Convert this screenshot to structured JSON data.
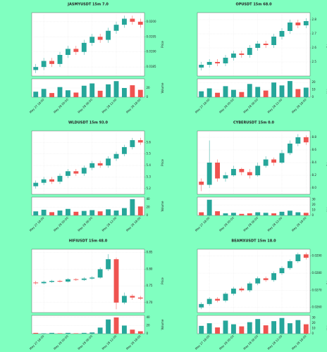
{
  "chart_data": [
    {
      "type": "candlestick",
      "title": "JASMYUSDT 15m 7.0",
      "ylabel": "Price",
      "vlabel": "Volume",
      "up_color": "#26a69a",
      "down_color": "#ef5350",
      "grid": true,
      "open": [
        0.0184,
        0.0185,
        0.0187,
        0.0186,
        0.0189,
        0.0191,
        0.019,
        0.0193,
        0.0195,
        0.0194,
        0.0197,
        0.0199,
        0.0201,
        0.02
      ],
      "high": [
        0.0186,
        0.0188,
        0.0188,
        0.019,
        0.0192,
        0.0192,
        0.0194,
        0.0196,
        0.0196,
        0.0198,
        0.02,
        0.0202,
        0.0202,
        0.0201
      ],
      "low": [
        0.0183,
        0.0184,
        0.0185,
        0.0185,
        0.0188,
        0.0189,
        0.0189,
        0.0192,
        0.0193,
        0.0193,
        0.0196,
        0.0198,
        0.0199,
        0.0198
      ],
      "close": [
        0.0185,
        0.0187,
        0.0186,
        0.0189,
        0.0191,
        0.019,
        0.0193,
        0.0195,
        0.0194,
        0.0197,
        0.0199,
        0.0201,
        0.02,
        0.0199
      ],
      "volume": [
        12,
        18,
        9,
        22,
        15,
        10,
        25,
        30,
        14,
        28,
        35,
        20,
        26,
        16
      ],
      "ylim": [
        0.0182,
        0.0203
      ],
      "yticks": [
        0.0185,
        {
          "value": 0.019,
          "label": "0.0190"
        },
        0.0195,
        {
          "value": 0.02,
          "label": "0.0200"
        }
      ],
      "vlim": [
        0,
        40
      ],
      "vticks": [
        0,
        20
      ],
      "xlim": [
        -0.5,
        13.5
      ],
      "xticks": [
        {
          "value": 1,
          "label": "May 27 18:00"
        },
        {
          "value": 4,
          "label": "May 28 00:00"
        },
        {
          "value": 7,
          "label": "May 28 06:00"
        },
        {
          "value": 10,
          "label": "May 28 12:00"
        },
        {
          "value": 13,
          "label": "May 28 18:00"
        }
      ]
    },
    {
      "type": "candlestick",
      "title": "OPUSDT 15m 68.0",
      "ylabel": "Price",
      "vlabel": "Volume",
      "up_color": "#26a69a",
      "down_color": "#ef5350",
      "grid": true,
      "open": [
        2.46,
        2.48,
        2.5,
        2.49,
        2.53,
        2.56,
        2.55,
        2.6,
        2.63,
        2.62,
        2.68,
        2.72,
        2.78,
        2.76
      ],
      "high": [
        2.5,
        2.52,
        2.52,
        2.55,
        2.58,
        2.58,
        2.62,
        2.65,
        2.65,
        2.7,
        2.74,
        2.8,
        2.8,
        2.81
      ],
      "low": [
        2.44,
        2.46,
        2.47,
        2.47,
        2.51,
        2.53,
        2.53,
        2.58,
        2.6,
        2.6,
        2.66,
        2.7,
        2.74,
        2.74
      ],
      "close": [
        2.48,
        2.5,
        2.49,
        2.53,
        2.56,
        2.55,
        2.6,
        2.63,
        2.62,
        2.68,
        2.72,
        2.78,
        2.76,
        2.79
      ],
      "volume": [
        8,
        12,
        6,
        15,
        10,
        7,
        18,
        14,
        9,
        20,
        16,
        22,
        11,
        13
      ],
      "ylim": [
        2.4,
        2.85
      ],
      "yticks": [
        2.5,
        2.6,
        2.7,
        2.8
      ],
      "vlim": [
        0,
        25
      ],
      "vticks": [
        0,
        10,
        20
      ],
      "xlim": [
        -0.5,
        13.5
      ],
      "xticks": [
        {
          "value": 1,
          "label": "May 27 18:00"
        },
        {
          "value": 4,
          "label": "May 28 00:00"
        },
        {
          "value": 7,
          "label": "May 28 06:00"
        },
        {
          "value": 10,
          "label": "May 28 12:00"
        },
        {
          "value": 13,
          "label": "May 28 18:00"
        }
      ]
    },
    {
      "type": "candlestick",
      "title": "WLDUSDT 15m 93.0",
      "ylabel": "Price",
      "vlabel": "Volume",
      "up_color": "#26a69a",
      "down_color": "#ef5350",
      "grid": true,
      "open": [
        5.22,
        5.25,
        5.28,
        5.26,
        5.31,
        5.35,
        5.33,
        5.38,
        5.42,
        5.4,
        5.46,
        5.5,
        5.56,
        5.62
      ],
      "high": [
        5.27,
        5.3,
        5.3,
        5.33,
        5.37,
        5.37,
        5.4,
        5.44,
        5.44,
        5.48,
        5.52,
        5.58,
        5.64,
        5.64
      ],
      "low": [
        5.2,
        5.23,
        5.24,
        5.24,
        5.29,
        5.31,
        5.31,
        5.36,
        5.38,
        5.38,
        5.44,
        5.48,
        5.54,
        5.58
      ],
      "close": [
        5.25,
        5.28,
        5.26,
        5.31,
        5.35,
        5.33,
        5.38,
        5.42,
        5.4,
        5.46,
        5.5,
        5.56,
        5.62,
        5.6
      ],
      "volume": [
        10,
        14,
        8,
        12,
        16,
        9,
        11,
        13,
        10,
        15,
        12,
        18,
        40,
        22
      ],
      "ylim": [
        5.15,
        5.7
      ],
      "yticks": [
        5.2,
        5.3,
        5.4,
        5.5,
        5.6
      ],
      "vlim": [
        0,
        45
      ],
      "vticks": [
        0,
        20,
        40
      ],
      "xlim": [
        -0.5,
        13.5
      ],
      "xticks": [
        {
          "value": 1,
          "label": "May 27 18:00"
        },
        {
          "value": 4,
          "label": "May 28 00:00"
        },
        {
          "value": 7,
          "label": "May 28 06:00"
        },
        {
          "value": 10,
          "label": "May 28 12:00"
        },
        {
          "value": 13,
          "label": "May 28 18:00"
        }
      ]
    },
    {
      "type": "candlestick",
      "title": "CYBERUSDT 15m 0.0",
      "ylabel": "Price",
      "vlabel": "Volume",
      "up_color": "#26a69a",
      "down_color": "#ef5350",
      "grid": true,
      "open": [
        8.1,
        8.05,
        8.4,
        8.15,
        8.2,
        8.3,
        8.25,
        8.2,
        8.35,
        8.45,
        8.4,
        8.55,
        8.7,
        8.8
      ],
      "high": [
        8.15,
        8.75,
        8.45,
        8.25,
        8.35,
        8.32,
        8.3,
        8.4,
        8.5,
        8.48,
        8.6,
        8.75,
        8.85,
        8.83
      ],
      "low": [
        7.95,
        8.0,
        8.1,
        8.1,
        8.18,
        8.2,
        8.15,
        8.18,
        8.32,
        8.35,
        8.38,
        8.52,
        8.66,
        8.68
      ],
      "close": [
        8.05,
        8.4,
        8.15,
        8.2,
        8.3,
        8.25,
        8.2,
        8.35,
        8.45,
        8.4,
        8.55,
        8.7,
        8.8,
        8.72
      ],
      "volume": [
        6,
        30,
        8,
        4,
        5,
        3,
        4,
        6,
        5,
        4,
        7,
        9,
        6,
        5
      ],
      "ylim": [
        7.9,
        8.9
      ],
      "yticks": [
        {
          "value": 8,
          "label": "8.0"
        },
        8.2,
        8.4,
        8.6,
        8.8
      ],
      "vlim": [
        0,
        35
      ],
      "vticks": [
        0,
        10,
        20,
        30
      ],
      "xlim": [
        -0.5,
        13.5
      ],
      "xticks": [
        {
          "value": 1,
          "label": "May 27 18:00"
        },
        {
          "value": 4,
          "label": "May 28 00:00"
        },
        {
          "value": 7,
          "label": "May 28 06:00"
        },
        {
          "value": 10,
          "label": "May 28 12:00"
        },
        {
          "value": 13,
          "label": "May 28 18:00"
        }
      ]
    },
    {
      "type": "candlestick",
      "title": "HIFIUSDT 15m 48.0",
      "ylabel": "Price",
      "vlabel": "Volume",
      "up_color": "#26a69a",
      "down_color": "#ef5350",
      "grid": true,
      "open": [
        0.76,
        0.758,
        0.762,
        0.765,
        0.763,
        0.77,
        0.768,
        0.772,
        0.775,
        0.8,
        0.83,
        0.7,
        0.72,
        0.715
      ],
      "high": [
        0.765,
        0.766,
        0.768,
        0.768,
        0.773,
        0.773,
        0.776,
        0.779,
        0.805,
        0.845,
        0.835,
        0.73,
        0.725,
        0.72
      ],
      "low": [
        0.754,
        0.755,
        0.759,
        0.76,
        0.76,
        0.765,
        0.765,
        0.769,
        0.772,
        0.795,
        0.68,
        0.695,
        0.708,
        0.708
      ],
      "close": [
        0.758,
        0.762,
        0.765,
        0.763,
        0.77,
        0.768,
        0.772,
        0.775,
        0.8,
        0.83,
        0.7,
        0.72,
        0.715,
        0.712
      ],
      "volume": [
        2,
        1,
        2,
        1,
        2,
        1,
        2,
        3,
        15,
        35,
        40,
        20,
        10,
        6
      ],
      "ylim": [
        0.67,
        0.86
      ],
      "yticks": [
        {
          "value": 0.7,
          "label": "0.70"
        },
        0.75,
        {
          "value": 0.8,
          "label": "0.80"
        },
        0.85
      ],
      "vlim": [
        0,
        45
      ],
      "vticks": [
        0,
        20,
        40
      ],
      "xlim": [
        -0.5,
        13.5
      ],
      "xticks": [
        {
          "value": 1,
          "label": "May 27 18:00"
        },
        {
          "value": 4,
          "label": "May 28 00:00"
        },
        {
          "value": 7,
          "label": "May 28 06:00"
        },
        {
          "value": 10,
          "label": "May 28 12:00"
        },
        {
          "value": 13,
          "label": "May 28 18:00"
        }
      ]
    },
    {
      "type": "candlestick",
      "title": "BEAMXUSDT 15m 18.0",
      "ylabel": "Price",
      "vlabel": "Volume",
      "up_color": "#26a69a",
      "down_color": "#ef5350",
      "grid": true,
      "open": [
        0.026,
        0.0262,
        0.0265,
        0.0264,
        0.0268,
        0.0271,
        0.027,
        0.0274,
        0.0277,
        0.0276,
        0.028,
        0.0283,
        0.0287,
        0.0291
      ],
      "high": [
        0.0263,
        0.0266,
        0.0266,
        0.0269,
        0.0272,
        0.0272,
        0.0275,
        0.0278,
        0.0278,
        0.0281,
        0.0284,
        0.0288,
        0.0292,
        0.0292
      ],
      "low": [
        0.0259,
        0.0261,
        0.0263,
        0.0263,
        0.0267,
        0.0269,
        0.0269,
        0.0273,
        0.0275,
        0.0275,
        0.0279,
        0.0282,
        0.0286,
        0.0288
      ],
      "close": [
        0.0262,
        0.0265,
        0.0264,
        0.0268,
        0.0271,
        0.027,
        0.0274,
        0.0277,
        0.0276,
        0.028,
        0.0283,
        0.0287,
        0.0291,
        0.0289
      ],
      "volume": [
        15,
        20,
        12,
        25,
        18,
        14,
        22,
        28,
        16,
        24,
        30,
        20,
        26,
        18
      ],
      "ylim": [
        0.0257,
        0.0294
      ],
      "yticks": [
        {
          "value": 0.026,
          "label": "0.0260"
        },
        {
          "value": 0.027,
          "label": "0.0270"
        },
        {
          "value": 0.028,
          "label": "0.0280"
        },
        {
          "value": 0.029,
          "label": "0.0290"
        }
      ],
      "vlim": [
        0,
        35
      ],
      "vticks": [
        0,
        10,
        20,
        30
      ],
      "xlim": [
        -0.5,
        13.5
      ],
      "xticks": [
        {
          "value": 1,
          "label": "May 27 18:00"
        },
        {
          "value": 4,
          "label": "May 28 00:00"
        },
        {
          "value": 7,
          "label": "May 28 06:00"
        },
        {
          "value": 10,
          "label": "May 28 12:00"
        },
        {
          "value": 13,
          "label": "May 28 18:00"
        }
      ]
    }
  ]
}
